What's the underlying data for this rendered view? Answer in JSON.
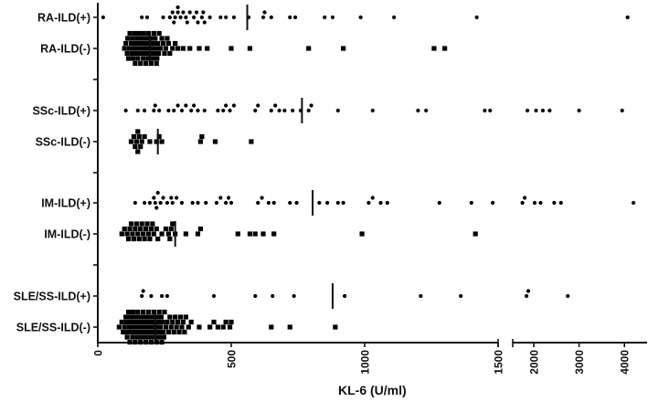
{
  "chart_data": {
    "type": "scatter",
    "subtype": "dot-plot (column scatter) with median lines, horizontal orientation",
    "title": "",
    "xlabel": "KL-6 (U/ml)",
    "ylabel": "",
    "x_axis": {
      "segments": [
        {
          "range": [
            0,
            1500
          ],
          "ticks": [
            0,
            500,
            1000,
            1500
          ],
          "tick_labels": [
            "0",
            "500",
            "1000",
            "1500"
          ]
        },
        {
          "range": [
            1540,
            4500
          ],
          "ticks": [
            2000,
            3000,
            4000
          ],
          "tick_labels": [
            "2000",
            "3000",
            "4000"
          ]
        }
      ],
      "break_between": [
        1500,
        1540
      ],
      "tick_label_rotation": -90
    },
    "grid": false,
    "legend": null,
    "categories": [
      "RA-ILD(+)",
      "RA-ILD(-)",
      "SSc-ILD(+)",
      "SSc-ILD(-)",
      "IM-ILD(+)",
      "IM-ILD(-)",
      "SLE/SS-ILD(+)",
      "SLE/SS-ILD(-)"
    ],
    "marker_by_category": [
      "circle",
      "square",
      "circle",
      "square",
      "circle",
      "square",
      "circle",
      "square"
    ],
    "series": [
      {
        "name": "RA-ILD(+)",
        "marker": "circle",
        "median": 560,
        "values": [
          20,
          165,
          185,
          245,
          270,
          280,
          285,
          290,
          300,
          300,
          310,
          320,
          330,
          335,
          345,
          360,
          370,
          375,
          390,
          395,
          400,
          420,
          460,
          480,
          510,
          565,
          620,
          625,
          650,
          720,
          740,
          850,
          880,
          985,
          1110,
          1420,
          4070
        ]
      },
      {
        "name": "RA-ILD(-)",
        "marker": "square",
        "median": 195,
        "values": [
          100,
          105,
          110,
          112,
          115,
          118,
          120,
          125,
          128,
          130,
          132,
          135,
          138,
          140,
          142,
          145,
          148,
          150,
          152,
          155,
          158,
          160,
          162,
          165,
          168,
          170,
          172,
          175,
          178,
          180,
          182,
          185,
          188,
          190,
          192,
          195,
          198,
          200,
          202,
          205,
          208,
          210,
          212,
          215,
          218,
          220,
          222,
          225,
          228,
          230,
          235,
          240,
          245,
          250,
          255,
          260,
          265,
          270,
          280,
          290,
          300,
          320,
          345,
          380,
          410,
          500,
          570,
          790,
          920,
          1260,
          1300
        ]
      },
      {
        "name": "SSc-ILD(+)",
        "marker": "circle",
        "median": 765,
        "values": [
          105,
          150,
          175,
          210,
          215,
          230,
          265,
          285,
          300,
          315,
          330,
          350,
          360,
          375,
          400,
          450,
          470,
          480,
          495,
          510,
          590,
          600,
          650,
          665,
          680,
          700,
          730,
          760,
          790,
          800,
          900,
          1030,
          1200,
          1230,
          1450,
          1470,
          1860,
          2050,
          2200,
          2350,
          3000,
          3950
        ]
      },
      {
        "name": "SSc-ILD(-)",
        "marker": "square",
        "median": 225,
        "values": [
          125,
          135,
          140,
          145,
          150,
          150,
          155,
          160,
          165,
          175,
          195,
          220,
          230,
          240,
          385,
          390,
          440,
          575
        ]
      },
      {
        "name": "IM-ILD(+)",
        "marker": "circle",
        "median": 805,
        "values": [
          140,
          175,
          195,
          210,
          215,
          220,
          225,
          235,
          245,
          260,
          275,
          280,
          295,
          315,
          355,
          375,
          405,
          445,
          460,
          480,
          490,
          500,
          600,
          615,
          640,
          660,
          720,
          745,
          830,
          860,
          900,
          920,
          1015,
          1030,
          1060,
          1085,
          1280,
          1400,
          1480,
          1750,
          1800,
          2020,
          2150,
          2450,
          2600,
          4200
        ]
      },
      {
        "name": "IM-ILD(-)",
        "marker": "square",
        "median": 290,
        "values": [
          90,
          100,
          110,
          115,
          120,
          125,
          130,
          135,
          140,
          145,
          150,
          155,
          160,
          165,
          170,
          175,
          180,
          185,
          190,
          195,
          200,
          205,
          210,
          220,
          225,
          240,
          255,
          265,
          270,
          275,
          280,
          290,
          330,
          375,
          385,
          525,
          570,
          590,
          620,
          660,
          990,
          1415
        ]
      },
      {
        "name": "SLE/SS-ILD(+)",
        "marker": "circle",
        "median": 880,
        "values": [
          165,
          170,
          200,
          240,
          260,
          435,
          590,
          655,
          735,
          925,
          1210,
          1360,
          1840,
          1880,
          2750
        ]
      },
      {
        "name": "SLE/SS-ILD(-)",
        "marker": "square",
        "median": 215,
        "values": [
          80,
          90,
          95,
          100,
          105,
          108,
          110,
          112,
          115,
          118,
          120,
          122,
          125,
          128,
          130,
          132,
          135,
          138,
          140,
          142,
          145,
          148,
          150,
          152,
          155,
          158,
          160,
          162,
          165,
          168,
          170,
          172,
          175,
          178,
          180,
          182,
          185,
          188,
          190,
          192,
          195,
          198,
          200,
          202,
          205,
          208,
          210,
          212,
          215,
          218,
          220,
          222,
          225,
          228,
          230,
          232,
          235,
          238,
          240,
          242,
          245,
          248,
          250,
          255,
          260,
          265,
          270,
          275,
          280,
          285,
          290,
          295,
          300,
          305,
          310,
          315,
          320,
          325,
          330,
          340,
          350,
          380,
          420,
          435,
          450,
          470,
          480,
          495,
          500,
          650,
          720,
          890
        ]
      }
    ]
  }
}
